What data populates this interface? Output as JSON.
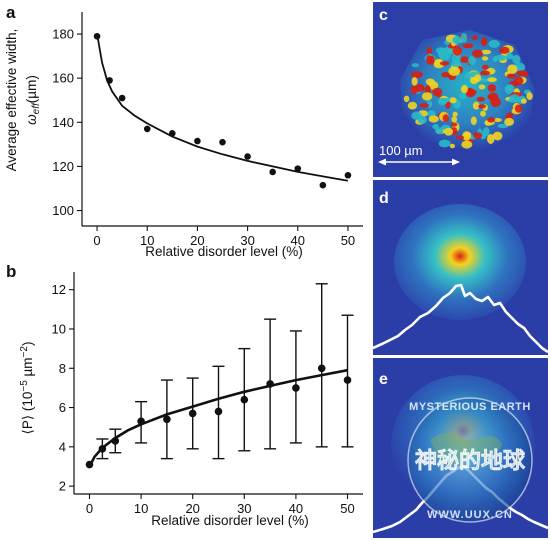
{
  "figure": {
    "panels": {
      "a": "a",
      "b": "b",
      "c": "c",
      "d": "d",
      "e": "e"
    },
    "scale_bar_label": "100 µm",
    "watermark": {
      "top_text": "MYSTERIOUS EARTH",
      "center_text": "神秘的地球",
      "bottom_text": "WWW.UUX.CN"
    },
    "colors": {
      "panel_bg": "#2c3fa8",
      "speckle_hot": "#d81e12",
      "speckle_warm": "#f2d421",
      "speckle_cool": "#28b9c9",
      "profile_line": "#ffffff"
    }
  },
  "chart_data": [
    {
      "panel": "a",
      "type": "scatter",
      "title": "",
      "xlabel": "Relative disorder level (%)",
      "ylabel_line1": "Average effective width,",
      "ylabel_symbol": "ω",
      "ylabel_subscript": "eff",
      "ylabel_unit": "(µm)",
      "xlim": [
        -3,
        53
      ],
      "ylim": [
        93,
        190
      ],
      "xticks": [
        0,
        10,
        20,
        30,
        40,
        50
      ],
      "yticks": [
        100,
        120,
        140,
        160,
        180
      ],
      "series": [
        {
          "x": [
            0,
            2.5,
            5,
            10,
            15,
            20,
            25,
            30,
            35,
            40,
            45,
            50
          ],
          "y": [
            179,
            159,
            151,
            137,
            135,
            131.5,
            131,
            124.5,
            117.5,
            119,
            111.5,
            116
          ]
        }
      ],
      "fit_curve": {
        "x": [
          0,
          1,
          2,
          3,
          5,
          7.5,
          10,
          15,
          20,
          25,
          30,
          35,
          40,
          45,
          50
        ],
        "y": [
          180,
          167,
          159,
          154,
          147.5,
          143,
          139.5,
          133.5,
          129,
          125.5,
          122.5,
          120,
          117.5,
          115.5,
          113.5
        ]
      }
    },
    {
      "panel": "b",
      "type": "scatter",
      "title": "",
      "xlabel": "Relative disorder level (%)",
      "ylabel_prefix": "⟨P⟩ (10",
      "ylabel_exp": "−5",
      "ylabel_mid": " µm",
      "ylabel_exp2": "−2",
      "ylabel_suffix": ")",
      "xlim": [
        -3,
        53
      ],
      "ylim": [
        1.6,
        12.9
      ],
      "xticks": [
        0,
        10,
        20,
        30,
        40,
        50
      ],
      "yticks": [
        2,
        4,
        6,
        8,
        10,
        12
      ],
      "series": [
        {
          "x": [
            0,
            2.5,
            5,
            10,
            15,
            20,
            25,
            30,
            35,
            40,
            45,
            50
          ],
          "y": [
            3.1,
            3.9,
            4.3,
            5.3,
            5.4,
            5.7,
            5.8,
            6.4,
            7.2,
            7.0,
            8.0,
            7.4
          ],
          "err_low": [
            3.1,
            3.4,
            3.7,
            4.2,
            3.4,
            3.9,
            3.4,
            3.8,
            3.9,
            4.2,
            4.0,
            4.0
          ],
          "err_high": [
            3.1,
            4.4,
            4.9,
            6.3,
            7.4,
            7.5,
            8.1,
            9.0,
            10.5,
            9.9,
            12.3,
            10.7
          ]
        }
      ],
      "fit_curve": {
        "x": [
          0,
          1,
          2,
          3,
          5,
          7.5,
          10,
          15,
          20,
          25,
          30,
          35,
          40,
          45,
          50
        ],
        "y": [
          3.0,
          3.5,
          3.8,
          4.05,
          4.45,
          4.85,
          5.15,
          5.65,
          6.05,
          6.45,
          6.8,
          7.1,
          7.4,
          7.65,
          7.9
        ]
      }
    }
  ]
}
